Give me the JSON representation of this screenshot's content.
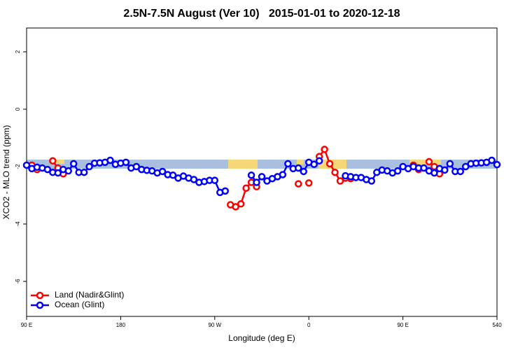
{
  "chart_data": {
    "type": "line",
    "title": "2.5N-7.5N August (Ver 10)   2015-01-01 to 2020-12-18",
    "xlabel": "Longitude (deg E)",
    "ylabel": "XCO2 - MLO trend (ppm)",
    "xlim": [
      90,
      540
    ],
    "ylim": [
      -7.22,
      2.83
    ],
    "xticks": [
      {
        "value": 90,
        "label": "90 E"
      },
      180,
      {
        "value": 270,
        "label": "90 W"
      },
      {
        "value": 360,
        "label": "0"
      },
      {
        "value": 450,
        "label": "90 E"
      },
      540
    ],
    "yticks": [
      2,
      0,
      -2,
      -4,
      -6
    ],
    "legend": "bottom-left",
    "x": [
      90,
      95,
      100,
      105,
      110,
      115,
      120,
      125,
      130,
      135,
      140,
      145,
      150,
      155,
      160,
      165,
      170,
      175,
      180,
      185,
      190,
      195,
      200,
      205,
      210,
      215,
      220,
      225,
      230,
      235,
      240,
      245,
      250,
      255,
      260,
      265,
      270,
      275,
      280,
      285,
      290,
      295,
      300,
      305,
      310,
      315,
      320,
      325,
      330,
      335,
      340,
      345,
      350,
      355,
      360,
      365,
      370,
      375,
      380,
      385,
      390,
      395,
      400,
      405,
      410,
      415,
      420,
      425,
      430,
      435,
      440,
      445,
      450,
      455,
      460,
      465,
      470,
      475,
      480,
      485,
      490,
      495,
      500,
      505,
      510,
      515,
      520,
      525,
      530,
      535,
      540
    ],
    "series": [
      {
        "name": "Land (Nadir&Glint)",
        "color": "#ff0000",
        "values": [
          null,
          -1.95,
          -2.1,
          null,
          null,
          -1.8,
          -2.05,
          -2.25,
          null,
          null,
          null,
          null,
          null,
          null,
          null,
          null,
          null,
          null,
          null,
          null,
          null,
          null,
          null,
          null,
          null,
          null,
          null,
          null,
          null,
          null,
          null,
          null,
          null,
          null,
          null,
          null,
          null,
          null,
          null,
          -3.33,
          -3.4,
          -3.3,
          -2.75,
          -2.55,
          -2.7,
          null,
          null,
          null,
          null,
          null,
          null,
          null,
          -2.6,
          null,
          -2.57,
          null,
          -1.65,
          -1.4,
          -1.9,
          -2.2,
          -2.5,
          -2.4,
          -2.42,
          null,
          null,
          null,
          null,
          null,
          null,
          null,
          null,
          null,
          null,
          null,
          -1.95,
          -2.1,
          null,
          -1.83,
          -2.0,
          -2.25,
          null,
          null,
          null,
          null,
          null,
          null,
          null,
          null,
          null,
          null,
          null
        ]
      },
      {
        "name": "Ocean (Glint)",
        "color": "#0000ff",
        "values": [
          -1.95,
          -2.07,
          -2.02,
          -2.05,
          -2.1,
          -2.2,
          -2.22,
          -2.1,
          -2.15,
          -1.9,
          -2.2,
          -2.2,
          -2.0,
          -1.88,
          -1.87,
          -1.85,
          -1.78,
          -1.92,
          -1.88,
          -1.85,
          -2.05,
          -2.0,
          -2.1,
          -2.13,
          -2.15,
          -2.22,
          -2.17,
          -2.28,
          -2.3,
          -2.4,
          -2.33,
          -2.4,
          -2.45,
          -2.55,
          -2.52,
          -2.48,
          -2.48,
          -2.9,
          -2.85,
          null,
          null,
          null,
          null,
          -2.3,
          -2.55,
          -2.35,
          -2.5,
          -2.42,
          -2.35,
          -2.28,
          -1.9,
          -2.07,
          -2.05,
          -2.17,
          -1.85,
          -1.92,
          -1.8,
          null,
          null,
          null,
          null,
          -2.32,
          -2.35,
          -2.38,
          -2.38,
          -2.45,
          -2.5,
          -2.2,
          -2.12,
          -2.15,
          -2.22,
          -2.15,
          -2.0,
          -2.07,
          -2.0,
          -2.05,
          -2.05,
          -2.15,
          -2.22,
          -2.07,
          -2.12,
          -1.9,
          -2.17,
          -2.17,
          -2.0,
          -1.9,
          -1.88,
          -1.87,
          -1.85,
          -1.78,
          -1.93
        ]
      }
    ]
  }
}
